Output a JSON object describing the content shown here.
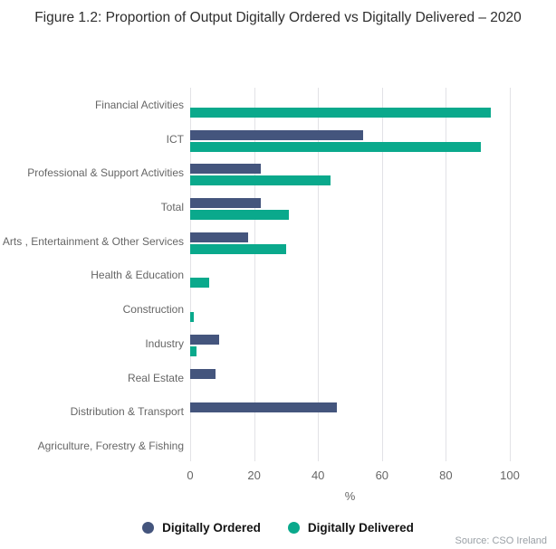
{
  "title": "Figure 1.2: Proportion of Output Digitally Ordered vs Digitally Delivered – 2020",
  "source": "Source: CSO Ireland",
  "chart_data": {
    "type": "bar",
    "orientation": "horizontal",
    "title": "Figure 1.2: Proportion of Output Digitally Ordered vs Digitally Delivered – 2020",
    "categories": [
      "Financial Activities",
      "ICT",
      "Professional & Support Activities",
      "Total",
      "Arts , Entertainment & Other Services",
      "Health & Education",
      "Construction",
      "Industry",
      "Real Estate",
      "Distribution & Transport",
      "Agriculture, Forestry & Fishing"
    ],
    "series": [
      {
        "name": "Digitally Ordered",
        "color": "#44557d",
        "values": [
          0,
          54,
          22,
          22,
          18,
          0,
          0,
          9,
          8,
          46,
          0
        ]
      },
      {
        "name": "Digitally Delivered",
        "color": "#0aa98c",
        "values": [
          94,
          91,
          44,
          31,
          30,
          6,
          1,
          2,
          0,
          0,
          0
        ]
      }
    ],
    "xlabel": "%",
    "ylabel": "",
    "xlim": [
      0,
      100
    ],
    "xticks": [
      0,
      20,
      40,
      60,
      80,
      100
    ],
    "grid": true,
    "legend_position": "bottom"
  },
  "colors": {
    "ordered": "#44557d",
    "delivered": "#0aa98c",
    "gridline": "#e2e2e6",
    "label_gray": "#666666"
  }
}
